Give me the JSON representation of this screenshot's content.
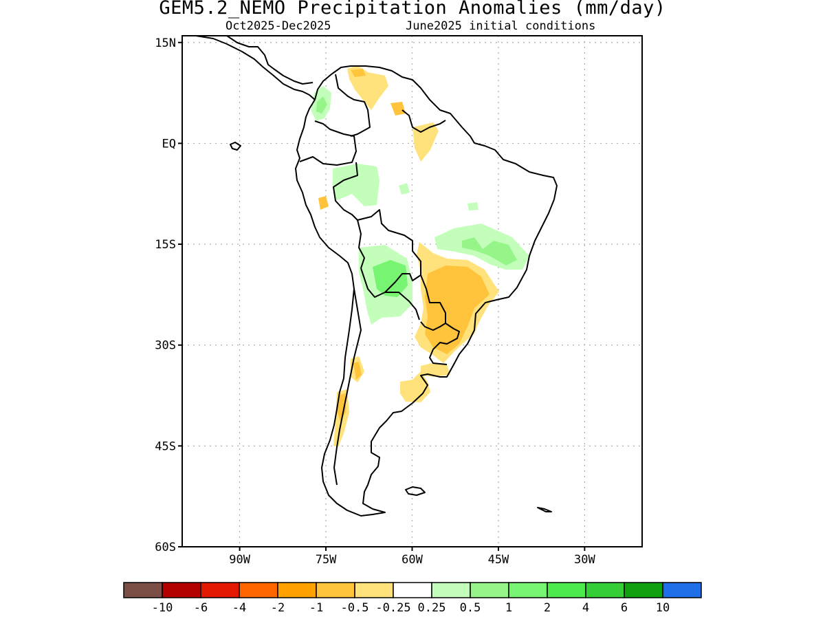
{
  "title": "GEM5.2_NEMO Precipitation Anomalies (mm/day)",
  "subtitle_left": "Oct2025-Dec2025",
  "subtitle_right": "June2025 initial conditions",
  "map": {
    "lat_labels": [
      {
        "lat": 15,
        "text": "15N"
      },
      {
        "lat": 0,
        "text": "EQ"
      },
      {
        "lat": -15,
        "text": "15S"
      },
      {
        "lat": -30,
        "text": "30S"
      },
      {
        "lat": -45,
        "text": "45S"
      },
      {
        "lat": -60,
        "text": "60S"
      }
    ],
    "lon_labels": [
      {
        "lon": -90,
        "text": "90W"
      },
      {
        "lon": -75,
        "text": "75W"
      },
      {
        "lon": -60,
        "text": "60W"
      },
      {
        "lon": -45,
        "text": "45W"
      },
      {
        "lon": -30,
        "text": "30W"
      }
    ],
    "lon_range": [
      -100,
      -20
    ],
    "lat_range": [
      -60,
      16
    ],
    "gridlines": "dotted"
  },
  "legend": {
    "colors": [
      "#7b4f46",
      "#b50000",
      "#e21900",
      "#ff6600",
      "#ffa200",
      "#ffc33c",
      "#ffe27b",
      "#ffffff",
      "#c3ffbb",
      "#96f589",
      "#78f473",
      "#4cea4c",
      "#34cf37",
      "#0fa10f",
      "#1f6fe9"
    ],
    "labels": [
      "-10",
      "-6",
      "-4",
      "-2",
      "-1",
      "-0.5",
      "-0.25",
      "0.25",
      "0.5",
      "1",
      "2",
      "4",
      "6",
      "10"
    ]
  }
}
